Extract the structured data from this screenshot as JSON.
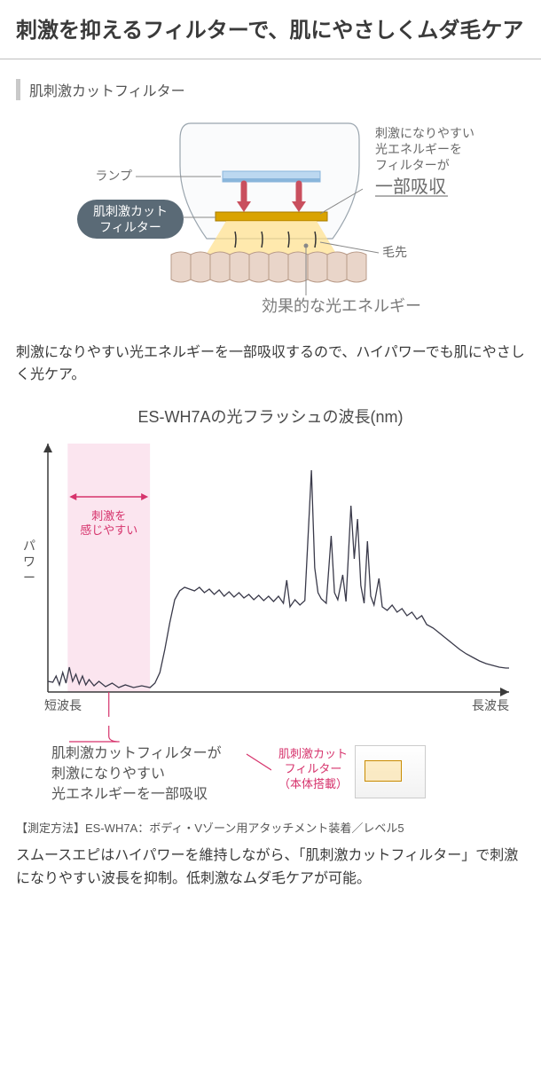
{
  "title": "刺激を抑えるフィルターで、肌にやさしくムダ毛ケア",
  "section_label": "肌刺激カットフィルター",
  "diagram": {
    "lamp_label": "ランプ",
    "filter_badge_l1": "肌刺激カット",
    "filter_badge_l2": "フィルター",
    "hair_tip_label": "毛先",
    "effective_light_label": "効果的な光エネルギー",
    "absorb_text_l1": "刺激になりやすい",
    "absorb_text_l2": "光エネルギーを",
    "absorb_text_l3": "フィルターが",
    "absorb_text_highlight": "一部吸収",
    "colors": {
      "body_outline": "#9aa5ae",
      "body_fill": "#fafbfc",
      "lamp_top": "#bcd8f0",
      "lamp_bottom": "#89b5db",
      "filter_bar": "#d9a300",
      "filter_bar_edge": "#a77b00",
      "light_cone": "#ffe08a",
      "arrow": "#c94f5e",
      "skin_cell_fill": "#e9d5c9",
      "skin_cell_stroke": "#b89a88",
      "hair": "#333",
      "badge_fill": "#5a6a76",
      "badge_stroke": "#5a6a76",
      "badge_text": "#ffffff",
      "label_text": "#6a6a6a",
      "effective_text": "#7b7b7b",
      "highlight_underline": "#b0b0b0",
      "leader": "#888"
    }
  },
  "body1": "刺激になりやすい光エネルギーを一部吸収するので、ハイパワーでも肌にやさしく光ケア。",
  "chart": {
    "title": "ES-WH7Aの光フラッシュの波長(nm)",
    "ylabel": "パワー",
    "xlabel_left": "短波長",
    "xlabel_right": "長波長",
    "shade_label_l1": "刺激を",
    "shade_label_l2": "感じやすい",
    "axis_color": "#3a3a3a",
    "line_color": "#3a3a4a",
    "shade_fill": "#fbe5ef",
    "shade_arrow": "#d6336c",
    "colors": {
      "bg": "#ffffff"
    },
    "xrange": [
      0,
      560
    ],
    "yrange": [
      0,
      280
    ],
    "shade_x": [
      24,
      124
    ],
    "series": [
      [
        0,
        12
      ],
      [
        6,
        11
      ],
      [
        10,
        18
      ],
      [
        14,
        8
      ],
      [
        18,
        22
      ],
      [
        22,
        10
      ],
      [
        26,
        28
      ],
      [
        30,
        12
      ],
      [
        34,
        20
      ],
      [
        38,
        9
      ],
      [
        42,
        18
      ],
      [
        46,
        8
      ],
      [
        50,
        14
      ],
      [
        56,
        7
      ],
      [
        62,
        12
      ],
      [
        70,
        6
      ],
      [
        78,
        10
      ],
      [
        86,
        5
      ],
      [
        94,
        8
      ],
      [
        104,
        5
      ],
      [
        114,
        7
      ],
      [
        124,
        5
      ],
      [
        130,
        10
      ],
      [
        136,
        22
      ],
      [
        142,
        48
      ],
      [
        148,
        78
      ],
      [
        154,
        104
      ],
      [
        160,
        114
      ],
      [
        166,
        118
      ],
      [
        172,
        116
      ],
      [
        178,
        114
      ],
      [
        184,
        118
      ],
      [
        190,
        112
      ],
      [
        196,
        116
      ],
      [
        202,
        110
      ],
      [
        208,
        115
      ],
      [
        214,
        108
      ],
      [
        220,
        113
      ],
      [
        226,
        107
      ],
      [
        232,
        112
      ],
      [
        238,
        106
      ],
      [
        244,
        110
      ],
      [
        250,
        104
      ],
      [
        256,
        109
      ],
      [
        262,
        103
      ],
      [
        268,
        108
      ],
      [
        274,
        102
      ],
      [
        280,
        108
      ],
      [
        286,
        100
      ],
      [
        290,
        126
      ],
      [
        294,
        96
      ],
      [
        300,
        104
      ],
      [
        306,
        98
      ],
      [
        312,
        103
      ],
      [
        320,
        250
      ],
      [
        324,
        140
      ],
      [
        328,
        112
      ],
      [
        332,
        105
      ],
      [
        338,
        100
      ],
      [
        344,
        176
      ],
      [
        348,
        112
      ],
      [
        352,
        104
      ],
      [
        358,
        132
      ],
      [
        362,
        102
      ],
      [
        368,
        210
      ],
      [
        372,
        150
      ],
      [
        376,
        195
      ],
      [
        380,
        120
      ],
      [
        384,
        100
      ],
      [
        388,
        170
      ],
      [
        392,
        108
      ],
      [
        396,
        98
      ],
      [
        402,
        128
      ],
      [
        406,
        96
      ],
      [
        412,
        92
      ],
      [
        418,
        98
      ],
      [
        424,
        90
      ],
      [
        430,
        94
      ],
      [
        436,
        86
      ],
      [
        442,
        90
      ],
      [
        448,
        82
      ],
      [
        454,
        86
      ],
      [
        460,
        76
      ],
      [
        468,
        72
      ],
      [
        476,
        66
      ],
      [
        484,
        60
      ],
      [
        492,
        54
      ],
      [
        500,
        48
      ],
      [
        508,
        43
      ],
      [
        516,
        39
      ],
      [
        524,
        35
      ],
      [
        532,
        32
      ],
      [
        540,
        30
      ],
      [
        548,
        28
      ],
      [
        556,
        27
      ],
      [
        560,
        27
      ]
    ]
  },
  "annotation": {
    "main_l1": "肌刺激カットフィルターが",
    "main_l2": "刺激になりやすい",
    "main_l3": "光エネルギーを一部吸収",
    "filter_label_l1": "肌刺激カット",
    "filter_label_l2": "フィルター",
    "filter_label_l3": "（本体搭載）"
  },
  "measure_note": "【測定方法】ES-WH7A：ボディ・Vゾーン用アタッチメント装着／レベル5",
  "closing": "スムースエピはハイパワーを維持しながら、「肌刺激カットフィルター」で刺激になりやすい波長を抑制。低刺激なムダ毛ケアが可能。"
}
